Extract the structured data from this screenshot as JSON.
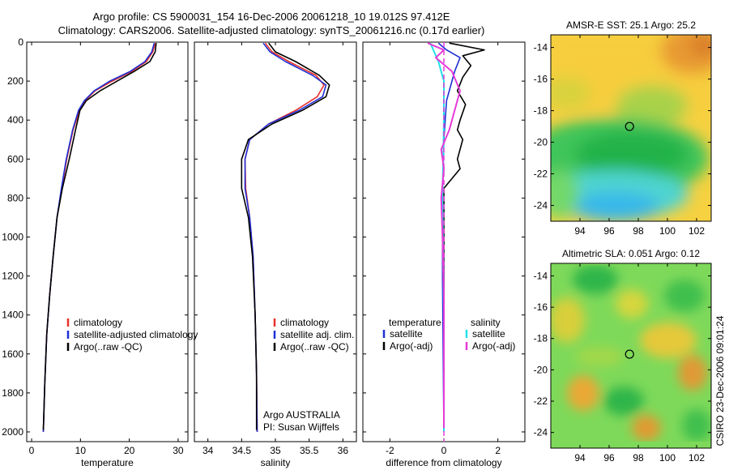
{
  "header": {
    "line1": "Argo profile: CS 5900031_154 16-Dec-2006 20061218_10 19.012S 97.412E",
    "line2": "Climatology: CARS2006. Satellite-adjusted climatology: synTS_20061216.nc (0.17d earlier)"
  },
  "colors": {
    "clim": "#e8312a",
    "sat": "#1f2fd6",
    "argo": "#000000",
    "sat_s": "#22e0ea",
    "argo_s": "#e53bd8"
  },
  "chart_data": [
    {
      "type": "line",
      "name": "temperature-profile",
      "xlabel": "temperature",
      "ylabel": "",
      "xlim": [
        -1,
        32
      ],
      "ylim": [
        2050,
        0
      ],
      "y_reversed": true,
      "xticks": [
        0,
        10,
        20,
        30
      ],
      "yticks": [
        0,
        200,
        400,
        600,
        800,
        1000,
        1200,
        1400,
        1600,
        1800,
        2000
      ],
      "legend": [
        "climatology",
        "satellite-adjusted climatology",
        "Argo(..raw -QC)"
      ],
      "series": [
        {
          "name": "climatology",
          "color": "clim",
          "x": [
            25.3,
            24.8,
            23.5,
            20.5,
            16.5,
            13.0,
            11.0,
            9.8,
            8.5,
            7.2,
            6.2,
            5.2,
            4.4,
            3.7,
            3.1,
            2.7,
            2.4
          ],
          "y": [
            5,
            50,
            100,
            150,
            200,
            250,
            300,
            350,
            450,
            600,
            750,
            900,
            1100,
            1300,
            1500,
            1750,
            2000
          ]
        },
        {
          "name": "satellite-adjusted climatology",
          "color": "sat",
          "x": [
            25.1,
            24.6,
            23.2,
            20.2,
            16.0,
            12.8,
            10.8,
            9.6,
            8.4,
            7.1,
            6.1,
            5.2,
            4.4,
            3.7,
            3.1,
            2.7,
            2.4
          ],
          "y": [
            5,
            50,
            100,
            150,
            200,
            250,
            300,
            350,
            450,
            600,
            750,
            900,
            1100,
            1300,
            1500,
            1750,
            2000
          ]
        },
        {
          "name": "Argo(..raw -QC)",
          "color": "argo",
          "x": [
            25.5,
            25.3,
            24.2,
            21.0,
            17.5,
            14.0,
            11.2,
            9.9,
            9.0,
            7.7,
            6.3,
            5.2,
            4.4,
            3.7,
            3.1,
            2.7,
            2.4
          ],
          "y": [
            5,
            50,
            100,
            150,
            200,
            250,
            300,
            350,
            450,
            600,
            750,
            900,
            1100,
            1300,
            1500,
            1750,
            1990
          ]
        }
      ]
    },
    {
      "type": "line",
      "name": "salinity-profile",
      "xlabel": "salinity",
      "xlim": [
        33.8,
        36.2
      ],
      "ylim": [
        2050,
        0
      ],
      "y_reversed": true,
      "xticks": [
        34,
        34.5,
        35,
        35.5,
        36
      ],
      "legend": [
        "climatology",
        "satellite adj. clim.",
        "Argo(..raw -QC)"
      ],
      "annotations": [
        "Argo AUSTRALIA",
        "PI: Susan Wijffels"
      ],
      "series": [
        {
          "name": "climatology",
          "color": "clim",
          "x": [
            34.85,
            34.95,
            35.2,
            35.6,
            35.72,
            35.62,
            35.3,
            34.9,
            34.62,
            34.55,
            34.56,
            34.62,
            34.67,
            34.7,
            34.72,
            34.73
          ],
          "y": [
            5,
            50,
            100,
            170,
            220,
            280,
            350,
            420,
            500,
            600,
            750,
            900,
            1100,
            1400,
            1700,
            2000
          ]
        },
        {
          "name": "satellite adj. clim.",
          "color": "sat",
          "x": [
            34.82,
            34.92,
            35.15,
            35.55,
            35.75,
            35.7,
            35.35,
            34.9,
            34.62,
            34.55,
            34.55,
            34.62,
            34.67,
            34.7,
            34.72,
            34.73
          ],
          "y": [
            5,
            50,
            100,
            170,
            220,
            280,
            350,
            420,
            500,
            600,
            750,
            900,
            1100,
            1400,
            1700,
            2000
          ]
        },
        {
          "name": "Argo(..raw -QC)",
          "color": "argo",
          "x": [
            34.9,
            35.0,
            35.3,
            35.65,
            35.8,
            35.75,
            35.4,
            34.95,
            34.6,
            34.5,
            34.5,
            34.6,
            34.66,
            34.7,
            34.72,
            34.72
          ],
          "y": [
            5,
            50,
            100,
            170,
            220,
            280,
            350,
            420,
            500,
            600,
            750,
            900,
            1100,
            1400,
            1700,
            1990
          ]
        }
      ]
    },
    {
      "type": "line",
      "name": "difference-profile",
      "xlabel": "difference from climatology",
      "xlim": [
        -3,
        3
      ],
      "ylim": [
        2050,
        0
      ],
      "y_reversed": true,
      "xticks": [
        -2,
        0,
        2
      ],
      "legend": [
        "temperature",
        "satellite",
        "Argo(-adj)",
        "salinity",
        "satellite",
        "Argo(-adj)"
      ],
      "series": [
        {
          "name": "temperature satellite",
          "color": "sat",
          "x": [
            -0.2,
            0.1,
            0.6,
            0.4,
            0.1,
            0.0,
            -0.05,
            -0.05,
            0.0
          ],
          "y": [
            5,
            40,
            80,
            150,
            300,
            500,
            800,
            1200,
            2000
          ]
        },
        {
          "name": "temperature Argo(-adj)",
          "color": "argo",
          "x": [
            0.2,
            1.5,
            0.7,
            1.0,
            0.7,
            0.5,
            0.8,
            0.6,
            0.5,
            0.7,
            0.6,
            0.5,
            0.6,
            0.0,
            0.0,
            0.0,
            0.0
          ],
          "y": [
            5,
            40,
            70,
            120,
            180,
            250,
            320,
            400,
            450,
            500,
            550,
            600,
            650,
            750,
            1300,
            1600,
            1980
          ]
        },
        {
          "name": "salinity satellite",
          "color": "sat_s",
          "x": [
            -0.5,
            -0.2,
            0.0,
            0.0,
            -0.05,
            0.0,
            0.0
          ],
          "y": [
            5,
            100,
            200,
            400,
            800,
            1400,
            2000
          ]
        },
        {
          "name": "salinity Argo(-adj)",
          "color": "argo_s",
          "x": [
            -0.6,
            0.0,
            -0.3,
            0.3,
            0.6,
            0.4,
            0.2,
            -0.1,
            0.0,
            -0.1,
            -0.05,
            0.0,
            0.0
          ],
          "y": [
            5,
            40,
            80,
            150,
            250,
            350,
            450,
            550,
            650,
            800,
            1000,
            1300,
            1980
          ]
        }
      ]
    },
    {
      "type": "heatmap",
      "name": "sst-map",
      "title": "AMSR-E SST: 25.1 Argo: 25.2",
      "xlim": [
        92,
        103
      ],
      "ylim": [
        -25,
        -13.2
      ],
      "xticks": [
        94,
        96,
        98,
        100,
        102
      ],
      "yticks": [
        -14,
        -16,
        -18,
        -20,
        -22,
        -24
      ],
      "marker": {
        "lon": 97.4,
        "lat": -19.0
      }
    },
    {
      "type": "heatmap",
      "name": "sla-map",
      "title": "Altimetric SLA: 0.051 Argo: 0.12",
      "xlim": [
        92,
        103
      ],
      "ylim": [
        -25,
        -13.2
      ],
      "xticks": [
        94,
        96,
        98,
        100,
        102
      ],
      "yticks": [
        -14,
        -16,
        -18,
        -20,
        -22,
        -24
      ],
      "marker": {
        "lon": 97.4,
        "lat": -19.0
      }
    }
  ],
  "credit": "CSIRO 23-Dec-2006 09:01:24"
}
